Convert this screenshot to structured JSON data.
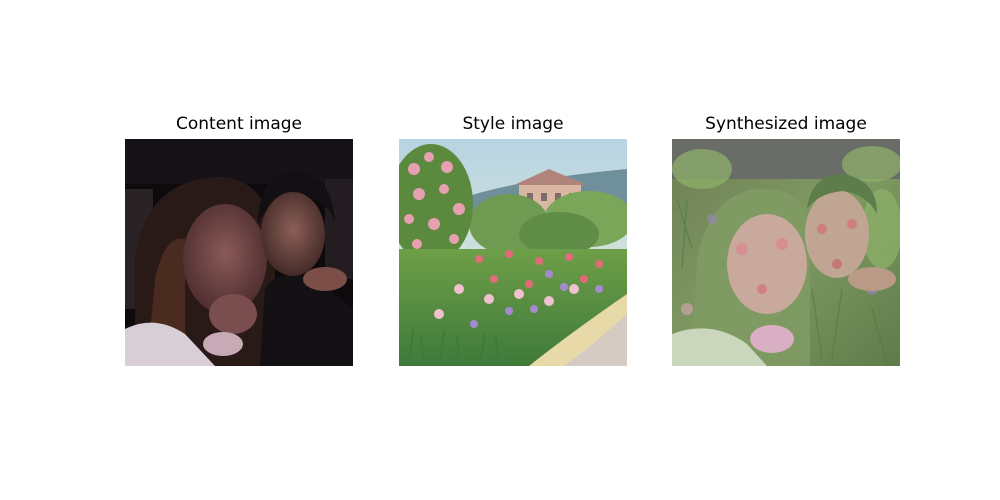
{
  "figure": {
    "panels": [
      {
        "title": "Content image",
        "image": "photo of two people posing close together against a dark background"
      },
      {
        "title": "Style image",
        "image": "impressionist painting of a flower garden with a house and trees"
      },
      {
        "title": "Synthesized image",
        "image": "content photo rendered in the painting's colorful brushstroke style"
      }
    ]
  }
}
